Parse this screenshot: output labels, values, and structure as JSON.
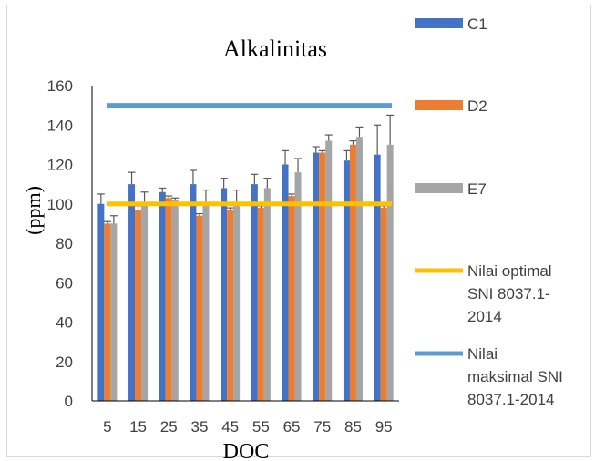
{
  "chart_data": {
    "type": "bar",
    "title": "Alkalinitas",
    "xlabel": "DOC",
    "ylabel": "(ppm)",
    "ylim": [
      0,
      160
    ],
    "yticks": [
      0,
      20,
      40,
      60,
      80,
      100,
      120,
      140,
      160
    ],
    "categories": [
      "5",
      "15",
      "25",
      "35",
      "45",
      "55",
      "65",
      "75",
      "85",
      "95"
    ],
    "series": [
      {
        "name": "C1",
        "color": "#4472C4",
        "values": [
          100,
          110,
          106,
          110,
          108,
          110,
          120,
          126,
          122,
          125
        ],
        "errors": [
          5,
          6,
          2,
          7,
          5,
          5,
          7,
          3,
          5,
          15
        ]
      },
      {
        "name": "D2",
        "color": "#ED7D31",
        "values": [
          90,
          97,
          103,
          94,
          97,
          98,
          104,
          126,
          130,
          98
        ],
        "errors": [
          1,
          2,
          1,
          1,
          1,
          1,
          1,
          1,
          2,
          1
        ]
      },
      {
        "name": "E7",
        "color": "#A5A5A5",
        "values": [
          90,
          100,
          102,
          101,
          101,
          108,
          116,
          132,
          134,
          130
        ],
        "errors": [
          4,
          6,
          1,
          6,
          6,
          5,
          7,
          3,
          5,
          15
        ]
      }
    ],
    "lines": [
      {
        "name": "Nilai optimal SNI 8037.1-2014",
        "color": "#FFC000",
        "value": 100
      },
      {
        "name": "Nilai maksimal SNI 8037.1-2014",
        "color": "#5B9BD5",
        "value": 150
      }
    ],
    "legend": {
      "position": "right",
      "entries": [
        {
          "lines": [
            "C1"
          ],
          "color": "#4472C4",
          "kind": "bar"
        },
        {
          "lines": [
            "D2"
          ],
          "color": "#ED7D31",
          "kind": "bar"
        },
        {
          "lines": [
            "E7"
          ],
          "color": "#A5A5A5",
          "kind": "bar"
        },
        {
          "lines": [
            "Nilai optimal",
            "SNI 8037.1-",
            "2014"
          ],
          "color": "#FFC000",
          "kind": "line"
        },
        {
          "lines": [
            "Nilai",
            "maksimal SNI",
            "8037.1-2014"
          ],
          "color": "#5B9BD5",
          "kind": "line"
        }
      ]
    }
  }
}
